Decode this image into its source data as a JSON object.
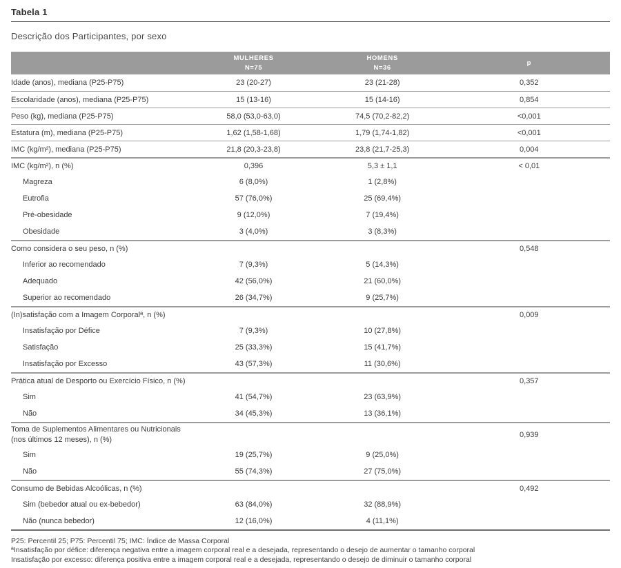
{
  "title": "Tabela 1",
  "subtitle": "Descrição dos Participantes, por sexo",
  "colors": {
    "header_bg": "#9b9b9b",
    "header_text": "#ffffff",
    "title_rule": "#3a3a3a",
    "row_line": "#9b9b9b",
    "table_bottom_line": "#6e6e6e",
    "body_text": "#3b3b3b"
  },
  "header": {
    "mulheres_line1": "MULHERES",
    "mulheres_line2": "N=75",
    "homens_line1": "HOMENS",
    "homens_line2": "N=36",
    "p": "p"
  },
  "table": {
    "rows": [
      {
        "type": "section",
        "label": "Idade (anos), mediana (P25-P75)",
        "m": "23 (20-27)",
        "h": "23 (21-28)",
        "p": "0,352"
      },
      {
        "type": "section",
        "label": "Escolaridade (anos), mediana (P25-P75)",
        "m": "15 (13-16)",
        "h": "15 (14-16)",
        "p": "0,854"
      },
      {
        "type": "section",
        "label": "Peso (kg), mediana (P25-P75)",
        "m": "58,0 (53,0-63,0)",
        "h": "74,5 (70,2-82,2)",
        "p": "<0,001"
      },
      {
        "type": "section",
        "label": "Estatura (m), mediana (P25-P75)",
        "m": "1,62 (1,58-1,68)",
        "h": "1,79 (1,74-1,82)",
        "p": "<0,001"
      },
      {
        "type": "section",
        "label": "IMC (kg/m²), mediana (P25-P75)",
        "m": "21,8 (20,3-23,8)",
        "h": "23,8 (21,7-25,3)",
        "p": "0,004"
      },
      {
        "type": "section",
        "thick": true,
        "label": "IMC (kg/m²), n (%)",
        "m": "0,396",
        "h": "5,3 ± 1,1",
        "p": "< 0,01"
      },
      {
        "type": "sub",
        "label": "Magreza",
        "m": "6 (8,0%)",
        "h": "1 (2,8%)",
        "p": ""
      },
      {
        "type": "sub",
        "label": "Eutrofia",
        "m": "57 (76,0%)",
        "h": "25 (69,4%)",
        "p": ""
      },
      {
        "type": "sub",
        "label": "Pré-obesidade",
        "m": "9 (12,0%)",
        "h": "7 (19,4%)",
        "p": ""
      },
      {
        "type": "sub",
        "label": "Obesidade",
        "m": "3 (4,0%)",
        "h": "3 (8,3%)",
        "p": ""
      },
      {
        "type": "section",
        "thick": true,
        "label": "Como considera o seu peso, n (%)",
        "m": "",
        "h": "",
        "p": "0,548"
      },
      {
        "type": "sub",
        "label": "Inferior ao recomendado",
        "m": "7 (9,3%)",
        "h": "5 (14,3%)",
        "p": ""
      },
      {
        "type": "sub",
        "label": "Adequado",
        "m": "42 (56,0%)",
        "h": "21 (60,0%)",
        "p": ""
      },
      {
        "type": "sub",
        "label": "Superior ao recomendado",
        "m": "26 (34,7%)",
        "h": "9 (25,7%)",
        "p": ""
      },
      {
        "type": "section",
        "thick": true,
        "label": "(In)satisfação com a Imagem Corporalª, n (%)",
        "m": "",
        "h": "",
        "p": "0,009"
      },
      {
        "type": "sub",
        "label": "Insatisfação por Défice",
        "m": "7 (9,3%)",
        "h": "10 (27,8%)",
        "p": ""
      },
      {
        "type": "sub",
        "label": "Satisfação",
        "m": "25 (33,3%)",
        "h": "15 (41,7%)",
        "p": ""
      },
      {
        "type": "sub",
        "label": "Insatisfação por Excesso",
        "m": "43 (57,3%)",
        "h": "11 (30,6%)",
        "p": ""
      },
      {
        "type": "section",
        "thick": true,
        "label": "Prática atual de Desporto ou Exercício Físico, n (%)",
        "m": "",
        "h": "",
        "p": "0,357"
      },
      {
        "type": "sub",
        "label": "Sim",
        "m": "41 (54,7%)",
        "h": "23 (63,9%)",
        "p": ""
      },
      {
        "type": "sub",
        "label": "Não",
        "m": "34 (45,3%)",
        "h": "13 (36,1%)",
        "p": ""
      },
      {
        "type": "section",
        "thick": true,
        "label": "Toma de Suplementos Alimentares ou Nutricionais",
        "label2": "(nos últimos 12 meses), n (%)",
        "m": "",
        "h": "",
        "p": "0,939"
      },
      {
        "type": "sub",
        "label": "Sim",
        "m": "19 (25,7%)",
        "h": "9 (25,0%)",
        "p": ""
      },
      {
        "type": "sub",
        "label": "Não",
        "m": "55 (74,3%)",
        "h": "27 (75,0%)",
        "p": ""
      },
      {
        "type": "section",
        "thick": true,
        "label": "Consumo de Bebidas Alcoólicas, n (%)",
        "m": "",
        "h": "",
        "p": "0,492"
      },
      {
        "type": "sub",
        "label": "Sim (bebedor atual ou ex-bebedor)",
        "m": "63 (84,0%)",
        "h": "32 (88,9%)",
        "p": ""
      },
      {
        "type": "sub",
        "label": "Não (nunca bebedor)",
        "m": "12 (16,0%)",
        "h": "4 (11,1%)",
        "p": ""
      }
    ]
  },
  "footnotes": [
    "P25: Percentil 25; P75: Percentil 75; IMC: Índice de Massa Corporal",
    "ªInsatisfação por défice: diferença negativa entre a imagem corporal real e a desejada, representando o desejo de aumentar o tamanho corporal",
    "Insatisfação por excesso: diferença positiva entre a imagem corporal real e a desejada, representando o desejo de diminuir o tamanho corporal"
  ]
}
